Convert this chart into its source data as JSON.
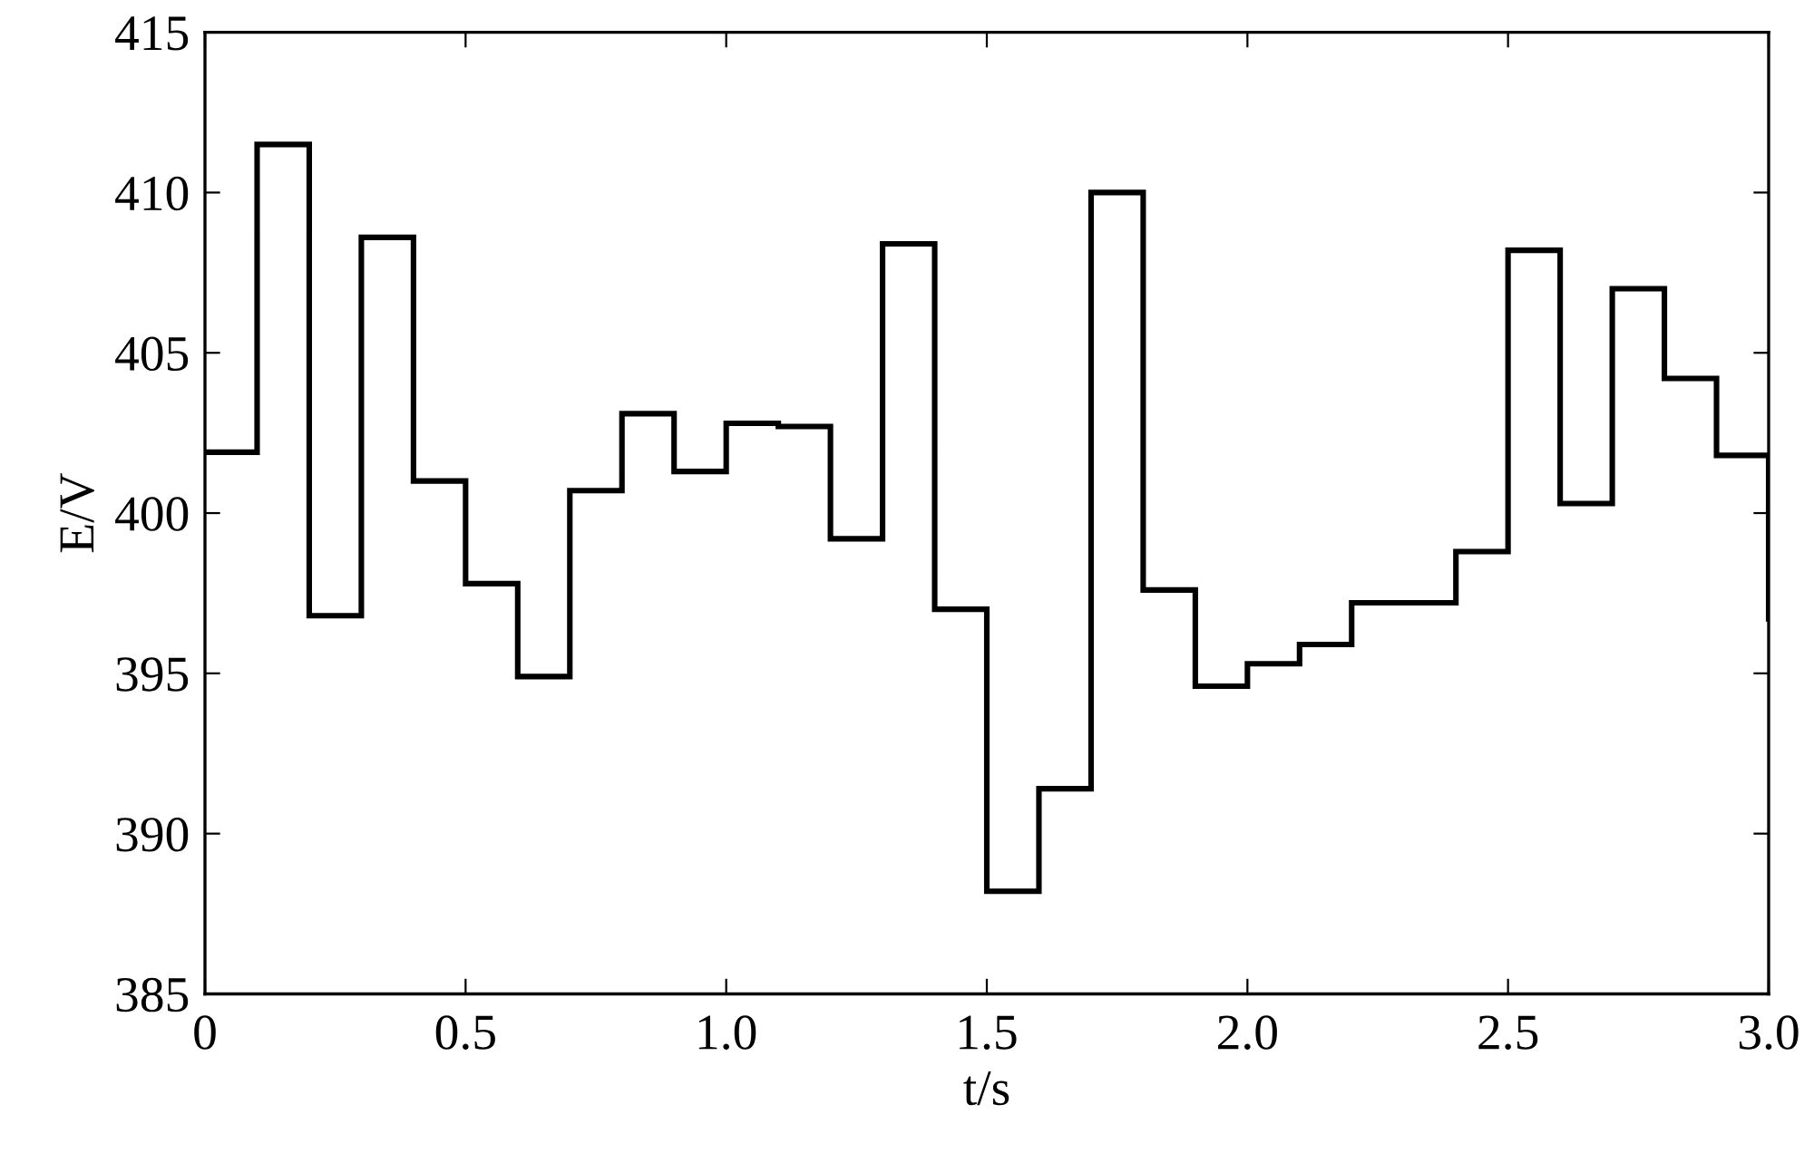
{
  "chart_data": {
    "type": "step",
    "xlabel": "t/s",
    "ylabel": "E/V",
    "x": [
      0,
      0.1,
      0.2,
      0.3,
      0.4,
      0.5,
      0.6,
      0.7,
      0.8,
      0.9,
      1.0,
      1.1,
      1.2,
      1.3,
      1.4,
      1.5,
      1.6,
      1.7,
      1.8,
      1.9,
      2.0,
      2.1,
      2.2,
      2.3,
      2.4,
      2.5,
      2.6,
      2.7,
      2.8,
      2.9,
      3.0
    ],
    "series": [
      {
        "color": "#000000",
        "values": [
          401.9,
          411.5,
          396.8,
          408.6,
          401.0,
          397.8,
          394.9,
          400.7,
          403.1,
          401.3,
          402.8,
          402.7,
          399.2,
          408.4,
          397.0,
          388.2,
          391.4,
          410.0,
          397.6,
          394.6,
          395.3,
          395.9,
          397.2,
          397.2,
          398.8,
          408.2,
          400.3,
          407.0,
          404.2,
          401.8,
          396.7
        ]
      }
    ],
    "xlim": [
      0,
      3.0
    ],
    "ylim": [
      385,
      415
    ],
    "xticks": [
      0,
      {
        "value": 0.5,
        "label": "0.5"
      },
      {
        "value": 1.0,
        "label": "1.0"
      },
      {
        "value": 1.5,
        "label": "1.5"
      },
      {
        "value": 2.0,
        "label": "2.0"
      },
      {
        "value": 2.5,
        "label": "2.5"
      },
      {
        "value": 3.0,
        "label": "3.0"
      }
    ],
    "yticks": [
      385,
      390,
      395,
      400,
      405,
      410,
      415
    ],
    "grid": false,
    "marker": "none",
    "line_style": "solid"
  }
}
